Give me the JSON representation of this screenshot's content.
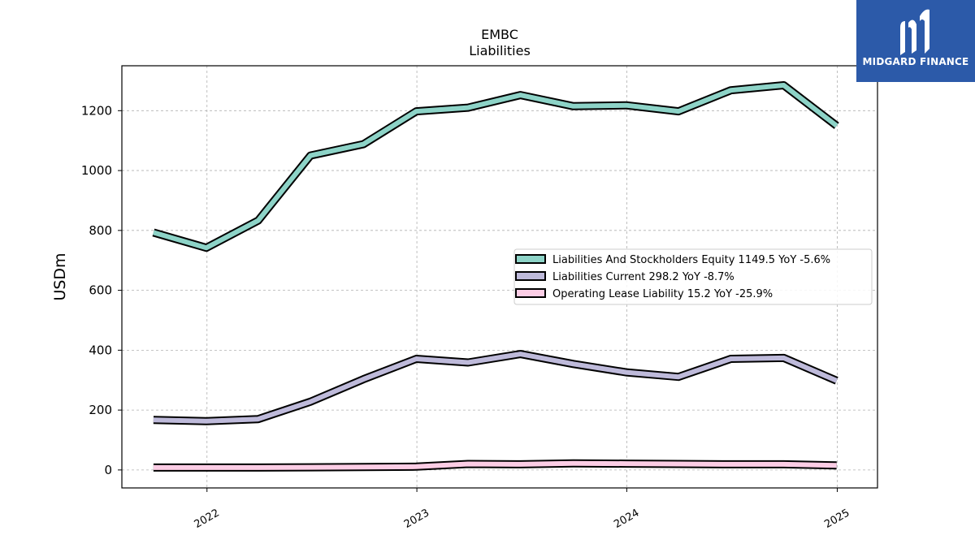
{
  "chart_data": {
    "type": "line",
    "title": "EMBC",
    "subtitle": "Liabilities",
    "ylabel": "USDm",
    "xlabel": "",
    "ylim": [
      -60,
      1350
    ],
    "xlim": [
      "2021-08-06",
      "2025-03-12"
    ],
    "yticks": [
      0,
      200,
      400,
      600,
      800,
      1000,
      1200
    ],
    "xticks": [
      {
        "date": "2022-01-01",
        "label": "2022"
      },
      {
        "date": "2023-01-01",
        "label": "2023"
      },
      {
        "date": "2024-01-01",
        "label": "2024"
      },
      {
        "date": "2025-01-01",
        "label": "2025"
      }
    ],
    "grid": true,
    "legend_position": "right",
    "x": [
      "2021-09-30",
      "2021-12-31",
      "2022-03-31",
      "2022-06-30",
      "2022-09-30",
      "2022-12-31",
      "2023-03-31",
      "2023-06-30",
      "2023-09-30",
      "2023-12-31",
      "2024-03-31",
      "2024-06-30",
      "2024-09-30",
      "2024-12-31"
    ],
    "series": [
      {
        "name": "Liabilities And Stockholders Equity",
        "legend": "Liabilities And Stockholders Equity  1149.5 YoY -5.6%",
        "color": "#8dd3c7",
        "values": [
          793,
          742,
          833,
          1050,
          1088,
          1198,
          1210,
          1252,
          1215,
          1218,
          1198,
          1268,
          1285,
          1149.5
        ]
      },
      {
        "name": "Liabilities Current",
        "legend": "Liabilities Current  298.2 YoY -8.7%",
        "color": "#bebada",
        "values": [
          167,
          163,
          170,
          228,
          303,
          371,
          359,
          387,
          354,
          326,
          311,
          371,
          374,
          298.2
        ]
      },
      {
        "name": "Operating Lease Liability",
        "legend": "Operating Lease Liability  15.2 YoY -25.9%",
        "color": "#fccde5",
        "values": [
          8,
          8,
          8,
          9,
          10,
          11,
          20,
          19,
          22,
          21,
          20,
          19,
          19,
          15.2
        ]
      }
    ]
  },
  "brand": {
    "name": "MIDGARD FINANCE",
    "background": "#2c5aa9",
    "logo_icon": "midgard-m-icon"
  }
}
